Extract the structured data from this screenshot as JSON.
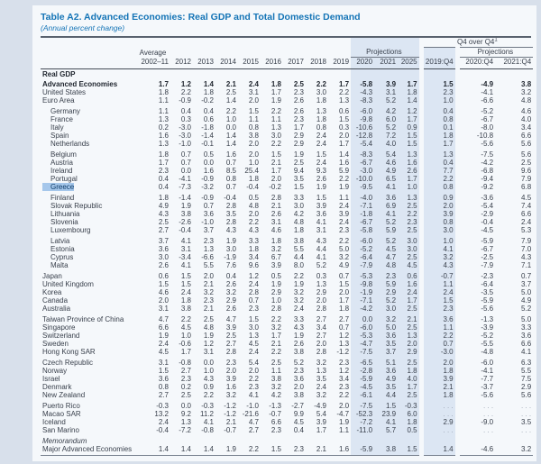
{
  "title": "Table A2. Advanced Economies: Real GDP and Total Domestic Demand",
  "subtitle": "(Annual percent change)",
  "header": {
    "q4_label": "Q4 over Q4",
    "q4_sup": "1",
    "average_label": "Average",
    "projections_label": "Projections",
    "q4_projections_label": "Projections",
    "columns": [
      "2002–11",
      "2012",
      "2013",
      "2014",
      "2015",
      "2016",
      "2017",
      "2018",
      "2019",
      "2020",
      "2021",
      "2025",
      "2019:Q4",
      "2020:Q4",
      "2021:Q4"
    ]
  },
  "colors": {
    "title_blue": "#1474b6",
    "projection_band": "#dce6f3",
    "selection_highlight": "#a5c7eb",
    "page_background": "#f5f8fb",
    "margin_background": "#d8e0eb"
  },
  "section_label": "Real GDP",
  "groups": [
    {
      "rows": [
        {
          "label": "Advanced Economies",
          "bold": true,
          "values": [
            "1.7",
            "1.2",
            "1.4",
            "2.1",
            "2.4",
            "1.8",
            "2.5",
            "2.2",
            "1.7",
            "-5.8",
            "3.9",
            "1.7",
            "1.5",
            "-4.9",
            "3.8"
          ]
        },
        {
          "label": "United States",
          "values": [
            "1.8",
            "2.2",
            "1.8",
            "2.5",
            "3.1",
            "1.7",
            "2.3",
            "3.0",
            "2.2",
            "-4.3",
            "3.1",
            "1.8",
            "2.3",
            "-4.1",
            "3.2"
          ]
        },
        {
          "label": "Euro Area",
          "values": [
            "1.1",
            "-0.9",
            "-0.2",
            "1.4",
            "2.0",
            "1.9",
            "2.6",
            "1.8",
            "1.3",
            "-8.3",
            "5.2",
            "1.4",
            "1.0",
            "-6.6",
            "4.8"
          ]
        }
      ]
    },
    {
      "rows": [
        {
          "label": "Germany",
          "indent": true,
          "values": [
            "1.1",
            "0.4",
            "0.4",
            "2.2",
            "1.5",
            "2.2",
            "2.6",
            "1.3",
            "0.6",
            "-6.0",
            "4.2",
            "1.2",
            "0.4",
            "-5.2",
            "4.6"
          ]
        },
        {
          "label": "France",
          "indent": true,
          "values": [
            "1.3",
            "0.3",
            "0.6",
            "1.0",
            "1.1",
            "1.1",
            "2.3",
            "1.8",
            "1.5",
            "-9.8",
            "6.0",
            "1.7",
            "0.8",
            "-6.7",
            "4.0"
          ]
        },
        {
          "label": "Italy",
          "indent": true,
          "values": [
            "0.2",
            "-3.0",
            "-1.8",
            "0.0",
            "0.8",
            "1.3",
            "1.7",
            "0.8",
            "0.3",
            "-10.6",
            "5.2",
            "0.9",
            "0.1",
            "-8.0",
            "3.4"
          ]
        },
        {
          "label": "Spain",
          "indent": true,
          "values": [
            "1.6",
            "-3.0",
            "-1.4",
            "1.4",
            "3.8",
            "3.0",
            "2.9",
            "2.4",
            "2.0",
            "-12.8",
            "7.2",
            "1.5",
            "1.8",
            "-10.8",
            "6.6"
          ]
        },
        {
          "label": "Netherlands",
          "indent": true,
          "values": [
            "1.3",
            "-1.0",
            "-0.1",
            "1.4",
            "2.0",
            "2.2",
            "2.9",
            "2.4",
            "1.7",
            "-5.4",
            "4.0",
            "1.5",
            "1.7",
            "-5.6",
            "5.6"
          ]
        }
      ]
    },
    {
      "rows": [
        {
          "label": "Belgium",
          "indent": true,
          "values": [
            "1.8",
            "0.7",
            "0.5",
            "1.6",
            "2.0",
            "1.5",
            "1.9",
            "1.5",
            "1.4",
            "-8.3",
            "5.4",
            "1.3",
            "1.3",
            "-7.5",
            "5.6"
          ]
        },
        {
          "label": "Austria",
          "indent": true,
          "values": [
            "1.7",
            "0.7",
            "0.0",
            "0.7",
            "1.0",
            "2.1",
            "2.5",
            "2.4",
            "1.6",
            "-6.7",
            "4.6",
            "1.6",
            "0.4",
            "-4.2",
            "2.5"
          ]
        },
        {
          "label": "Ireland",
          "indent": true,
          "values": [
            "2.3",
            "0.0",
            "1.6",
            "8.5",
            "25.4",
            "1.7",
            "9.4",
            "9.3",
            "5.9",
            "-3.0",
            "4.9",
            "2.6",
            "7.7",
            "-6.8",
            "9.6"
          ]
        },
        {
          "label": "Portugal",
          "indent": true,
          "values": [
            "0.4",
            "-4.1",
            "-0.9",
            "0.8",
            "1.8",
            "2.0",
            "3.5",
            "2.6",
            "2.2",
            "-10.0",
            "6.5",
            "1.7",
            "2.2",
            "-9.4",
            "7.9"
          ]
        },
        {
          "label": "Greece",
          "indent": true,
          "highlight": true,
          "values": [
            "0.4",
            "-7.3",
            "-3.2",
            "0.7",
            "-0.4",
            "-0.2",
            "1.5",
            "1.9",
            "1.9",
            "-9.5",
            "4.1",
            "1.0",
            "0.8",
            "-9.2",
            "6.8"
          ]
        }
      ]
    },
    {
      "rows": [
        {
          "label": "Finland",
          "indent": true,
          "values": [
            "1.8",
            "-1.4",
            "-0.9",
            "-0.4",
            "0.5",
            "2.8",
            "3.3",
            "1.5",
            "1.1",
            "-4.0",
            "3.6",
            "1.3",
            "0.9",
            "-3.6",
            "4.5"
          ]
        },
        {
          "label": "Slovak Republic",
          "indent": true,
          "values": [
            "4.9",
            "1.9",
            "0.7",
            "2.8",
            "4.8",
            "2.1",
            "3.0",
            "3.9",
            "2.4",
            "-7.1",
            "6.9",
            "2.5",
            "2.0",
            "-5.4",
            "7.4"
          ]
        },
        {
          "label": "Lithuania",
          "indent": true,
          "values": [
            "4.3",
            "3.8",
            "3.6",
            "3.5",
            "2.0",
            "2.6",
            "4.2",
            "3.6",
            "3.9",
            "-1.8",
            "4.1",
            "2.2",
            "3.9",
            "-2.9",
            "6.6"
          ]
        },
        {
          "label": "Slovenia",
          "indent": true,
          "values": [
            "2.5",
            "-2.6",
            "-1.0",
            "2.8",
            "2.2",
            "3.1",
            "4.8",
            "4.1",
            "2.4",
            "-6.7",
            "5.2",
            "2.3",
            "0.8",
            "-0.4",
            "2.4"
          ]
        },
        {
          "label": "Luxembourg",
          "indent": true,
          "values": [
            "2.7",
            "-0.4",
            "3.7",
            "4.3",
            "4.3",
            "4.6",
            "1.8",
            "3.1",
            "2.3",
            "-5.8",
            "5.9",
            "2.5",
            "3.0",
            "-4.5",
            "5.3"
          ]
        }
      ]
    },
    {
      "rows": [
        {
          "label": "Latvia",
          "indent": true,
          "values": [
            "3.7",
            "4.1",
            "2.3",
            "1.9",
            "3.3",
            "1.8",
            "3.8",
            "4.3",
            "2.2",
            "-6.0",
            "5.2",
            "3.0",
            "1.0",
            "-5.9",
            "7.9"
          ]
        },
        {
          "label": "Estonia",
          "indent": true,
          "values": [
            "3.6",
            "3.1",
            "1.3",
            "3.0",
            "1.8",
            "3.2",
            "5.5",
            "4.4",
            "5.0",
            "-5.2",
            "4.5",
            "3.0",
            "4.1",
            "-6.7",
            "7.0"
          ]
        },
        {
          "label": "Cyprus",
          "indent": true,
          "values": [
            "3.0",
            "-3.4",
            "-6.6",
            "-1.9",
            "3.4",
            "6.7",
            "4.4",
            "4.1",
            "3.2",
            "-6.4",
            "4.7",
            "2.5",
            "3.2",
            "-2.5",
            "4.3"
          ]
        },
        {
          "label": "Malta",
          "indent": true,
          "values": [
            "2.6",
            "4.1",
            "5.5",
            "7.6",
            "9.6",
            "3.9",
            "8.0",
            "5.2",
            "4.9",
            "-7.9",
            "4.8",
            "4.5",
            "4.3",
            "-7.9",
            "7.1"
          ]
        }
      ]
    },
    {
      "rows": [
        {
          "label": "Japan",
          "values": [
            "0.6",
            "1.5",
            "2.0",
            "0.4",
            "1.2",
            "0.5",
            "2.2",
            "0.3",
            "0.7",
            "-5.3",
            "2.3",
            "0.6",
            "-0.7",
            "-2.3",
            "0.7"
          ]
        },
        {
          "label": "United Kingdom",
          "values": [
            "1.5",
            "1.5",
            "2.1",
            "2.6",
            "2.4",
            "1.9",
            "1.9",
            "1.3",
            "1.5",
            "-9.8",
            "5.9",
            "1.6",
            "1.1",
            "-6.4",
            "3.7"
          ]
        },
        {
          "label": "Korea",
          "values": [
            "4.6",
            "2.4",
            "3.2",
            "3.2",
            "2.8",
            "2.9",
            "3.2",
            "2.9",
            "2.0",
            "-1.9",
            "2.9",
            "2.4",
            "2.4",
            "-3.5",
            "5.0"
          ]
        },
        {
          "label": "Canada",
          "values": [
            "2.0",
            "1.8",
            "2.3",
            "2.9",
            "0.7",
            "1.0",
            "3.2",
            "2.0",
            "1.7",
            "-7.1",
            "5.2",
            "1.7",
            "1.5",
            "-5.9",
            "4.9"
          ]
        },
        {
          "label": "Australia",
          "values": [
            "3.1",
            "3.8",
            "2.1",
            "2.6",
            "2.3",
            "2.8",
            "2.4",
            "2.8",
            "1.8",
            "-4.2",
            "3.0",
            "2.5",
            "2.3",
            "-5.6",
            "5.2"
          ]
        }
      ]
    },
    {
      "rows": [
        {
          "label": "Taiwan Province of China",
          "values": [
            "4.7",
            "2.2",
            "2.5",
            "4.7",
            "1.5",
            "2.2",
            "3.3",
            "2.7",
            "2.7",
            "0.0",
            "3.2",
            "2.1",
            "3.6",
            "-1.3",
            "5.0"
          ]
        },
        {
          "label": "Singapore",
          "values": [
            "6.6",
            "4.5",
            "4.8",
            "3.9",
            "3.0",
            "3.2",
            "4.3",
            "3.4",
            "0.7",
            "-6.0",
            "5.0",
            "2.5",
            "1.1",
            "-3.9",
            "3.3"
          ]
        },
        {
          "label": "Switzerland",
          "values": [
            "1.9",
            "1.0",
            "1.9",
            "2.5",
            "1.3",
            "1.7",
            "1.9",
            "2.7",
            "1.2",
            "-5.3",
            "3.6",
            "1.3",
            "2.2",
            "-5.2",
            "3.6"
          ]
        },
        {
          "label": "Sweden",
          "values": [
            "2.4",
            "-0.6",
            "1.2",
            "2.7",
            "4.5",
            "2.1",
            "2.6",
            "2.0",
            "1.3",
            "-4.7",
            "3.5",
            "2.0",
            "0.7",
            "-5.5",
            "6.6"
          ]
        },
        {
          "label": "Hong Kong SAR",
          "values": [
            "4.5",
            "1.7",
            "3.1",
            "2.8",
            "2.4",
            "2.2",
            "3.8",
            "2.8",
            "-1.2",
            "-7.5",
            "3.7",
            "2.9",
            "-3.0",
            "-4.8",
            "4.1"
          ]
        }
      ]
    },
    {
      "rows": [
        {
          "label": "Czech Republic",
          "values": [
            "3.1",
            "-0.8",
            "0.0",
            "2.3",
            "5.4",
            "2.5",
            "5.2",
            "3.2",
            "2.3",
            "-6.5",
            "5.1",
            "2.5",
            "2.0",
            "-6.0",
            "6.3"
          ]
        },
        {
          "label": "Norway",
          "values": [
            "1.5",
            "2.7",
            "1.0",
            "2.0",
            "2.0",
            "1.1",
            "2.3",
            "1.3",
            "1.2",
            "-2.8",
            "3.6",
            "1.8",
            "1.8",
            "-4.1",
            "5.5"
          ]
        },
        {
          "label": "Israel",
          "values": [
            "3.6",
            "2.3",
            "4.3",
            "3.9",
            "2.2",
            "3.8",
            "3.6",
            "3.5",
            "3.4",
            "-5.9",
            "4.9",
            "4.0",
            "3.9",
            "-7.7",
            "7.5"
          ]
        },
        {
          "label": "Denmark",
          "values": [
            "0.8",
            "0.2",
            "0.9",
            "1.6",
            "2.3",
            "3.2",
            "2.0",
            "2.4",
            "2.3",
            "-4.5",
            "3.5",
            "1.7",
            "2.1",
            "-3.7",
            "2.9"
          ]
        },
        {
          "label": "New Zealand",
          "values": [
            "2.7",
            "2.5",
            "2.2",
            "3.2",
            "4.1",
            "4.2",
            "3.8",
            "3.2",
            "2.2",
            "-6.1",
            "4.4",
            "2.5",
            "1.8",
            "-5.6",
            "5.6"
          ]
        }
      ]
    },
    {
      "rows": [
        {
          "label": "Puerto Rico",
          "values": [
            "-0.3",
            "0.0",
            "-0.3",
            "-1.2",
            "-1.0",
            "-1.3",
            "-2.7",
            "-4.9",
            "2.0",
            "-7.5",
            "1.5",
            "-0.3",
            ". . .",
            ". . .",
            ". . ."
          ]
        },
        {
          "label": "Macao SAR",
          "values": [
            "13.2",
            "9.2",
            "11.2",
            "-1.2",
            "-21.6",
            "-0.7",
            "9.9",
            "5.4",
            "-4.7",
            "-52.3",
            "23.9",
            "6.0",
            ". . .",
            ". . .",
            ". . ."
          ]
        },
        {
          "label": "Iceland",
          "values": [
            "2.4",
            "1.3",
            "4.1",
            "2.1",
            "4.7",
            "6.6",
            "4.5",
            "3.9",
            "1.9",
            "-7.2",
            "4.1",
            "1.8",
            "2.9",
            "-9.0",
            "3.5"
          ]
        },
        {
          "label": "San Marino",
          "values": [
            "-0.4",
            "-7.2",
            "-0.8",
            "-0.7",
            "2.7",
            "2.3",
            "0.4",
            "1.7",
            "1.1",
            "-11.0",
            "5.7",
            "0.5",
            ". . .",
            ". . .",
            ". . ."
          ]
        }
      ]
    },
    {
      "rows": [
        {
          "label": "Memorandum",
          "italic": true,
          "values": []
        },
        {
          "label": "Major Advanced Economies",
          "values": [
            "1.4",
            "1.4",
            "1.4",
            "1.9",
            "2.2",
            "1.5",
            "2.3",
            "2.1",
            "1.6",
            "-5.9",
            "3.8",
            "1.5",
            "1.4",
            "-4.6",
            "3.2"
          ]
        }
      ]
    }
  ]
}
